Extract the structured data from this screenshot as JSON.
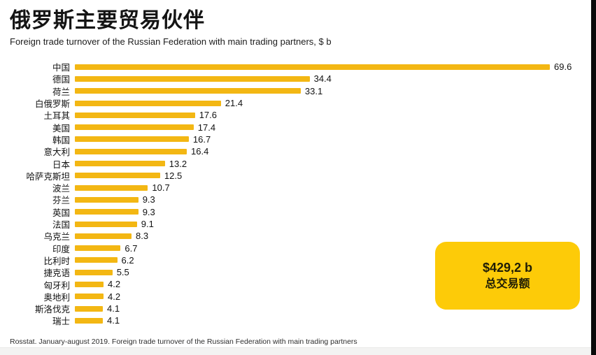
{
  "header": {
    "title": "俄罗斯主要贸易伙伴",
    "subtitle": "Foreign trade turnover of the Russian Federation with main trading partners, $ b"
  },
  "chart_data": {
    "type": "bar",
    "orientation": "horizontal",
    "title": "俄罗斯主要贸易伙伴",
    "subtitle": "Foreign trade turnover of the Russian Federation with main trading partners, $ b",
    "unit": "$ b",
    "categories": [
      "中国",
      "德国",
      "荷兰",
      "白俄罗斯",
      "土耳其",
      "美国",
      "韩国",
      "意大利",
      "日本",
      "哈萨克斯坦",
      "波兰",
      "芬兰",
      "英国",
      "法国",
      "乌克兰",
      "印度",
      "比利时",
      "捷克语",
      "匈牙利",
      "奥地利",
      "斯洛伐克",
      "瑞士"
    ],
    "values": [
      69.6,
      34.4,
      33.1,
      21.4,
      17.6,
      17.4,
      16.7,
      16.4,
      13.2,
      12.5,
      10.7,
      9.3,
      9.3,
      9.1,
      8.3,
      6.7,
      6.2,
      5.5,
      4.2,
      4.2,
      4.1,
      4.1
    ],
    "xlim": [
      0,
      72
    ],
    "grid": false,
    "legend": false,
    "value_labels": true,
    "bar_color": "#F3B713"
  },
  "total_badge": {
    "amount": "$429,2 b",
    "label": "总交易额",
    "color": "#FDCB08"
  },
  "footer": {
    "source": "Rosstat. January-august 2019. Foreign trade turnover of the Russian Federation with main trading partners"
  },
  "colors": {
    "bar": "#F3B713",
    "badge": "#FDCB08",
    "right_edge": "#0A0A0A",
    "text": "#1A1A1A"
  }
}
